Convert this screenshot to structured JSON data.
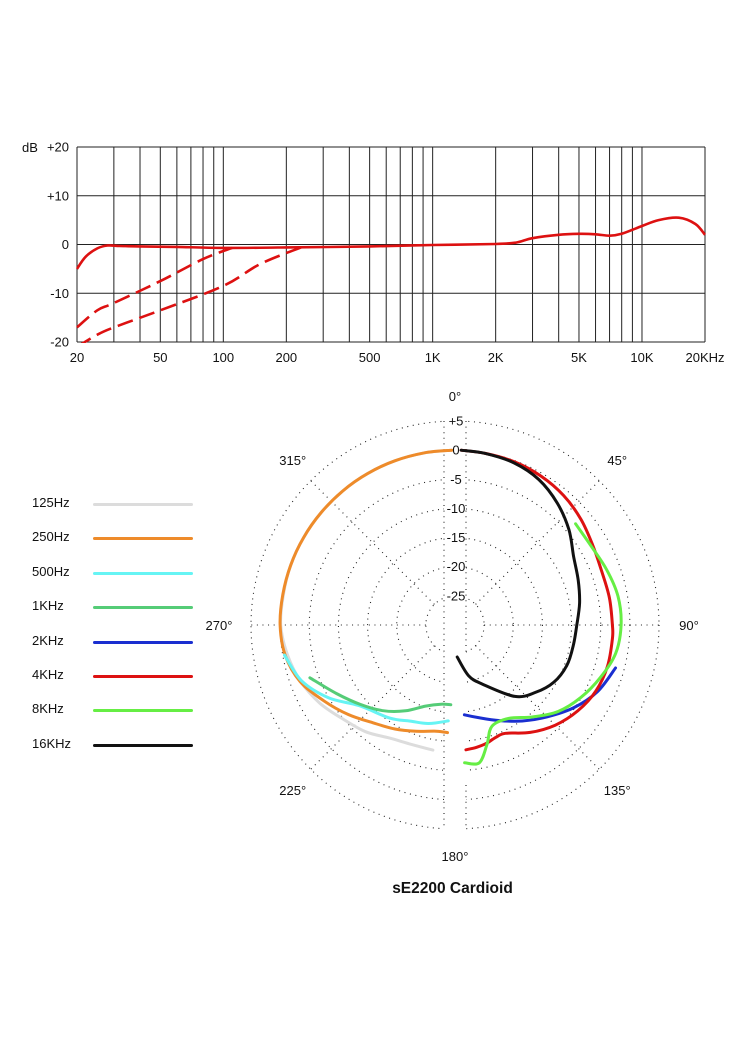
{
  "chart_data": [
    {
      "type": "line",
      "xscale": "log",
      "xlim": [
        20,
        20000
      ],
      "ylim": [
        -20,
        20
      ],
      "ylabel": "dB",
      "grid": true,
      "x_tick_labels": [
        "20",
        "50",
        "100",
        "200",
        "500",
        "1K",
        "2K",
        "5K",
        "10K",
        "20KHz"
      ],
      "x_tick_values": [
        20,
        50,
        100,
        200,
        500,
        1000,
        2000,
        5000,
        10000,
        20000
      ],
      "y_tick_labels": [
        "+20",
        "+10",
        "0",
        "-10",
        "-20"
      ],
      "y_tick_values": [
        20,
        10,
        0,
        -10,
        -20
      ],
      "series": [
        {
          "style": "solid",
          "color": "#dd1111",
          "x": [
            20,
            22,
            25,
            28,
            32,
            40,
            60,
            100,
            200,
            500,
            1000,
            2000,
            2500,
            3000,
            4000,
            5000,
            6000,
            7000,
            8000,
            10000,
            12000,
            15000,
            18000,
            20000
          ],
          "y": [
            -5,
            -2.5,
            -0.8,
            -0.2,
            -0.3,
            -0.4,
            -0.5,
            -0.7,
            -0.6,
            -0.4,
            -0.1,
            0.1,
            0.4,
            1.3,
            2,
            2.2,
            2.1,
            1.8,
            2.2,
            3.8,
            5.0,
            5.5,
            4.2,
            2.0
          ]
        },
        {
          "style": "dashed",
          "color": "#dd1111",
          "x": [
            20,
            25,
            30,
            50,
            80,
            110
          ],
          "y": [
            -17,
            -13.5,
            -12,
            -7.5,
            -3,
            -0.7
          ]
        },
        {
          "style": "dashed",
          "color": "#dd1111",
          "x": [
            20,
            25,
            30,
            50,
            100,
            150,
            235
          ],
          "y": [
            -21,
            -18.5,
            -17,
            -13.5,
            -8.5,
            -4,
            -0.6
          ]
        }
      ]
    },
    {
      "type": "polar",
      "title": "sE2200  Cardioid",
      "angle_labels": [
        {
          "angle": 0,
          "text": "0°"
        },
        {
          "angle": 45,
          "text": "45°"
        },
        {
          "angle": 90,
          "text": "90°"
        },
        {
          "angle": 135,
          "text": "135°"
        },
        {
          "angle": 180,
          "text": "180°"
        },
        {
          "angle": 225,
          "text": "225°"
        },
        {
          "angle": 270,
          "text": "270°"
        },
        {
          "angle": 315,
          "text": "315°"
        }
      ],
      "rlim": [
        -30,
        5
      ],
      "r_tick_labels": [
        "+5",
        "0",
        "-5",
        "-10",
        "-15",
        "-20",
        "-25"
      ],
      "r_tick_values": [
        5,
        0,
        -5,
        -10,
        -15,
        -20,
        -25
      ],
      "series": [
        {
          "name": "125Hz",
          "color": "#dcdcdc",
          "points": [
            [
              190,
              -8.2
            ],
            [
              200,
              -8.2
            ],
            [
              210,
              -7.6
            ],
            [
              220,
              -6.1
            ],
            [
              230,
              -4.9
            ],
            [
              240,
              -3.2
            ],
            [
              250,
              -1.8
            ],
            [
              260,
              -0.8
            ],
            [
              270,
              -0.1
            ],
            [
              280,
              -0.1
            ],
            [
              290,
              0
            ],
            [
              300,
              0
            ],
            [
              310,
              0
            ],
            [
              320,
              0
            ],
            [
              330,
              0
            ],
            [
              340,
              0
            ],
            [
              350,
              0
            ],
            [
              359,
              0
            ]
          ]
        },
        {
          "name": "250Hz",
          "color": "#ee8b2a",
          "points": [
            [
              184,
              -11.5
            ],
            [
              190,
              -11.5
            ],
            [
              200,
              -10.6
            ],
            [
              210,
              -9.4
            ],
            [
              220,
              -8.1
            ],
            [
              230,
              -6.1
            ],
            [
              240,
              -4.0
            ],
            [
              250,
              -1.7
            ],
            [
              260,
              -0.4
            ],
            [
              270,
              0
            ],
            [
              280,
              0
            ],
            [
              290,
              0
            ],
            [
              300,
              0
            ],
            [
              310,
              0
            ],
            [
              320,
              0
            ],
            [
              330,
              0
            ],
            [
              340,
              0
            ],
            [
              350,
              0
            ],
            [
              359,
              0
            ]
          ]
        },
        {
          "name": "500Hz",
          "color": "#66f4f4",
          "points": [
            [
              184,
              -13.5
            ],
            [
              195,
              -12.5
            ],
            [
              205,
              -11.8
            ],
            [
              215,
              -10.5
            ],
            [
              230,
              -8.5
            ],
            [
              240,
              -5.0
            ],
            [
              250,
              -2.0
            ],
            [
              260,
              -0.3
            ]
          ]
        },
        {
          "name": "1KHz",
          "color": "#55cc77",
          "points": [
            [
              183,
              -16.3
            ],
            [
              190,
              -16.2
            ],
            [
              200,
              -15.2
            ],
            [
              210,
              -13.0
            ],
            [
              220,
              -10.8
            ],
            [
              230,
              -8.8
            ],
            [
              240,
              -6.5
            ],
            [
              250,
              -3.5
            ]
          ]
        },
        {
          "name": "2KHz",
          "color": "#1a2fd0",
          "points": [
            [
              174,
              -14.5
            ],
            [
              165,
              -13.5
            ],
            [
              155,
              -11.9
            ],
            [
              145,
              -9.9
            ],
            [
              135,
              -7.7
            ],
            [
              125,
              -5.2
            ],
            [
              115,
              -3.0
            ],
            [
              105,
              -1.5
            ]
          ]
        },
        {
          "name": "4KHz",
          "color": "#dd1111",
          "points": [
            [
              175,
              -8.5
            ],
            [
              170,
              -8.7
            ],
            [
              165,
              -9.0
            ],
            [
              160,
              -9.5
            ],
            [
              155,
              -9.5
            ],
            [
              145,
              -7.5
            ],
            [
              135,
              -5.7
            ],
            [
              125,
              -4.3
            ],
            [
              115,
              -3.3
            ],
            [
              105,
              -2.9
            ],
            [
              95,
              -2.9
            ],
            [
              90,
              -3.0
            ],
            [
              80,
              -3.1
            ],
            [
              70,
              -3.2
            ],
            [
              60,
              -2.7
            ],
            [
              50,
              -1.8
            ],
            [
              40,
              -1.0
            ],
            [
              30,
              -0.5
            ],
            [
              20,
              -0.2
            ],
            [
              10,
              -0.1
            ],
            [
              2,
              0
            ]
          ]
        },
        {
          "name": "8KHz",
          "color": "#66ee44",
          "points": [
            [
              176,
              -6.3
            ],
            [
              170,
              -6.0
            ],
            [
              165,
              -8.8
            ],
            [
              160,
              -11.5
            ],
            [
              150,
              -11.5
            ],
            [
              140,
              -9.4
            ],
            [
              130,
              -6.9
            ],
            [
              120,
              -5.1
            ],
            [
              110,
              -3.5
            ],
            [
              100,
              -2.0
            ],
            [
              90,
              -1.5
            ],
            [
              80,
              -1.6
            ],
            [
              70,
              -2.3
            ],
            [
              60,
              -3.0
            ],
            [
              50,
              -3.0
            ]
          ]
        },
        {
          "name": "16KHz",
          "color": "#111111",
          "points": [
            [
              176,
              -24.5
            ],
            [
              165,
              -21.0
            ],
            [
              155,
              -18.8
            ],
            [
              140,
              -14.0
            ],
            [
              130,
              -12.0
            ],
            [
              120,
              -10.4
            ],
            [
              110,
              -9.6
            ],
            [
              100,
              -9.4
            ],
            [
              90,
              -9.1
            ],
            [
              80,
              -8.3
            ],
            [
              70,
              -7.5
            ],
            [
              60,
              -6.5
            ],
            [
              50,
              -4.5
            ],
            [
              40,
              -2.7
            ],
            [
              30,
              -1.2
            ],
            [
              20,
              -0.4
            ],
            [
              10,
              -0.1
            ],
            [
              2,
              0
            ]
          ]
        }
      ]
    }
  ]
}
